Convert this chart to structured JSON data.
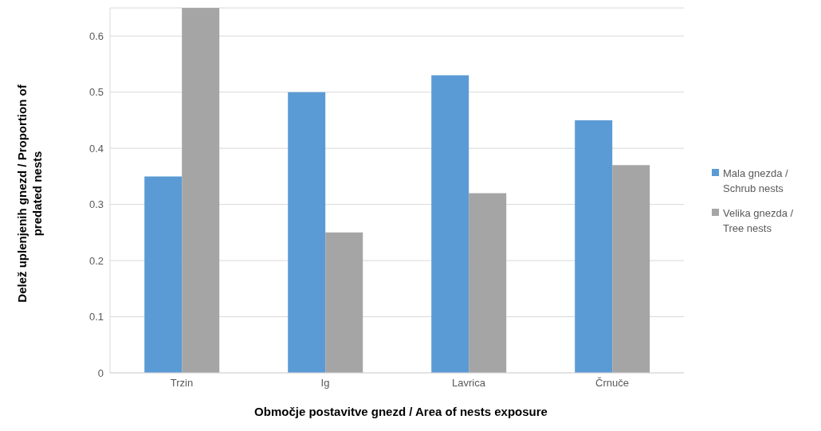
{
  "chart_data": {
    "type": "bar",
    "xlabel": "Območje postavitve gnezd / Area of nests exposure",
    "ylabel": "Delež uplenjenih gnezd / Proportion of predated nests",
    "categories": [
      "Trzin",
      "Ig",
      "Lavrica",
      "Črnuče"
    ],
    "series": [
      {
        "name": "Mala gnezda / Schrub nests",
        "color": "#5b9bd5",
        "values": [
          0.35,
          0.5,
          0.53,
          0.45
        ]
      },
      {
        "name": "Velika gnezda / Tree nests",
        "color": "#a5a5a5",
        "values": [
          0.65,
          0.25,
          0.32,
          0.37
        ]
      }
    ],
    "ylim": [
      0,
      0.65
    ],
    "yticks": [
      0,
      0.1,
      0.2,
      0.3,
      0.4,
      0.5,
      0.6
    ],
    "grid": "y",
    "legend": "right"
  }
}
